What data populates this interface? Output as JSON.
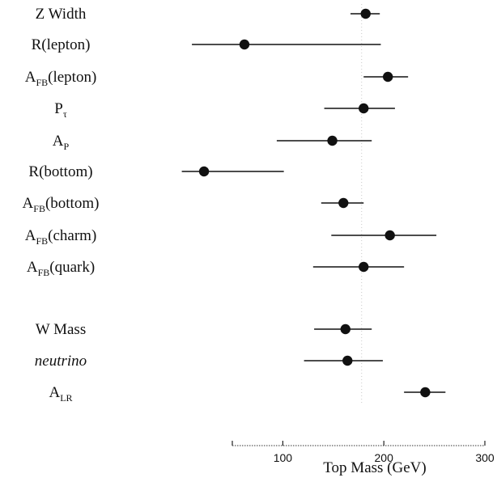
{
  "chart_data": {
    "type": "scatter",
    "title": "",
    "xlabel": "Top Mass  (GeV)",
    "ylabel": "",
    "xlim": [
      50,
      300
    ],
    "x_ticks": [
      100,
      200,
      300
    ],
    "grid": false,
    "legend": "none",
    "marker_color": "#111111",
    "reference_mass": 178,
    "rows": [
      {
        "name": "Z Width",
        "main": "Z Width",
        "sub": "",
        "suffix": "",
        "italic": false,
        "value": 182,
        "low": 167,
        "high": 196
      },
      {
        "name": "R(lepton)",
        "main": "R(lepton)",
        "sub": "",
        "suffix": "",
        "italic": false,
        "value": 62,
        "low": 10,
        "high": 197
      },
      {
        "name": "AFB(lepton)",
        "main": "A",
        "sub": "FB",
        "suffix": "(lepton)",
        "italic": false,
        "value": 204,
        "low": 180,
        "high": 224
      },
      {
        "name": "Ptau",
        "main": "P",
        "sub": "τ",
        "suffix": "",
        "italic": false,
        "value": 180,
        "low": 141,
        "high": 211
      },
      {
        "name": "AP",
        "main": "A",
        "sub": "P",
        "suffix": "",
        "italic": false,
        "value": 149,
        "low": 94,
        "high": 188
      },
      {
        "name": "R(bottom)",
        "main": "R(bottom)",
        "sub": "",
        "suffix": "",
        "italic": false,
        "value": 22,
        "low": 0,
        "high": 101
      },
      {
        "name": "AFB(bottom)",
        "main": "A",
        "sub": "FB",
        "suffix": "(bottom)",
        "italic": false,
        "value": 160,
        "low": 138,
        "high": 180
      },
      {
        "name": "AFB(charm)",
        "main": "A",
        "sub": "FB",
        "suffix": "(charm)",
        "italic": false,
        "value": 206,
        "low": 148,
        "high": 252
      },
      {
        "name": "AFB(quark)",
        "main": "A",
        "sub": "FB",
        "suffix": "(quark)",
        "italic": false,
        "value": 180,
        "low": 130,
        "high": 220
      },
      {
        "name": "W Mass",
        "main": "W Mass",
        "sub": "",
        "suffix": "",
        "italic": false,
        "value": 162,
        "low": 131,
        "high": 188
      },
      {
        "name": "neutrino",
        "main": "neutrino",
        "sub": "",
        "suffix": "",
        "italic": true,
        "value": 164,
        "low": 121,
        "high": 199
      },
      {
        "name": "ALR",
        "main": "A",
        "sub": "LR",
        "suffix": "",
        "italic": false,
        "value": 241,
        "low": 220,
        "high": 261
      }
    ]
  }
}
